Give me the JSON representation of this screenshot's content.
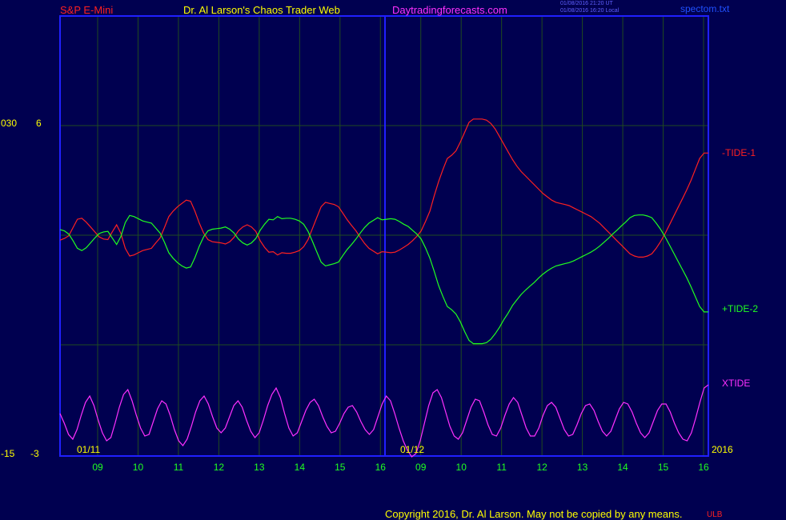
{
  "header": {
    "instrument": "S&P E-Mini",
    "author": "Dr. Al Larson's Chaos Trader Web",
    "site": "Daytradingforecasts.com",
    "stamp_line1": "01/08/2016 21:20 UT",
    "stamp_line2": "01/08/2016 16:20 Local",
    "file": "spectom.txt"
  },
  "footer": {
    "copyright": "Copyright 2016, Dr. Al Larson. May not be copied by any means.",
    "mark": "ULB"
  },
  "colors": {
    "background": "#000050",
    "frame": "#2020ff",
    "grid": "#1f4a1f",
    "tide1": "#ff2020",
    "tide2": "#20ff20",
    "xtide": "#ff30ff",
    "axis_text": "#ffff00",
    "tick_text": "#20ff20"
  },
  "chart_data": {
    "type": "line",
    "x_ticks": [
      "09",
      "10",
      "11",
      "12",
      "13",
      "14",
      "15",
      "16",
      "09",
      "10",
      "11",
      "12",
      "13",
      "14",
      "15",
      "16"
    ],
    "date_labels": [
      "01/11",
      "01/12"
    ],
    "year_label": "2016",
    "y_left_outer": {
      "top": "030",
      "bottom": "-15"
    },
    "y_left_inner": {
      "top": "6",
      "bottom": "-3"
    },
    "series": [
      {
        "name": "-TIDE-1",
        "color": "#ff2020",
        "values": [
          -0.45,
          -0.3,
          -0.05,
          0.7,
          1.45,
          1.55,
          1.2,
          0.75,
          0.3,
          -0.15,
          -0.35,
          -0.4,
          0.3,
          0.95,
          0.15,
          -1.2,
          -1.9,
          -1.8,
          -1.6,
          -1.4,
          -1.3,
          -1.2,
          -0.7,
          -0.25,
          0.7,
          1.7,
          2.2,
          2.6,
          2.9,
          3.2,
          3.1,
          2.2,
          1.1,
          0.2,
          -0.4,
          -0.6,
          -0.65,
          -0.7,
          -0.8,
          -0.6,
          -0.2,
          0.4,
          0.75,
          0.95,
          0.75,
          0.35,
          -0.5,
          -1.1,
          -1.55,
          -1.5,
          -1.8,
          -1.6,
          -1.65,
          -1.65,
          -1.55,
          -1.4,
          -1.05,
          -0.4,
          0.6,
          1.6,
          2.6,
          3.0,
          2.9,
          2.8,
          2.6,
          2.0,
          1.4,
          0.9,
          0.4,
          -0.2,
          -0.75,
          -1.2,
          -1.45,
          -1.7,
          -1.5,
          -1.55,
          -1.6,
          -1.55,
          -1.35,
          -1.1,
          -0.85,
          -0.5,
          -0.1,
          0.4,
          1.25,
          2.2,
          3.6,
          4.9,
          6.0,
          7.0,
          7.3,
          7.7,
          8.5,
          9.4,
          10.3,
          10.6,
          10.6,
          10.6,
          10.5,
          10.2,
          9.7,
          9.0,
          8.3,
          7.6,
          6.9,
          6.3,
          5.8,
          5.4,
          5.0,
          4.6,
          4.2,
          3.8,
          3.5,
          3.2,
          3.0,
          2.9,
          2.8,
          2.7,
          2.5,
          2.3,
          2.1,
          1.9,
          1.7,
          1.4,
          1.1,
          0.7,
          0.3,
          -0.1,
          -0.5,
          -0.9,
          -1.3,
          -1.7,
          -1.9,
          -2.0,
          -2.0,
          -1.9,
          -1.7,
          -1.2,
          -0.6,
          0.1,
          0.9,
          1.7,
          2.5,
          3.3,
          4.1,
          5.0,
          6.0,
          7.0,
          7.5,
          7.5
        ]
      },
      {
        "name": "+TIDE-2",
        "color": "#20ff20",
        "values": [
          0.5,
          0.4,
          0.1,
          -0.5,
          -1.2,
          -1.4,
          -1.15,
          -0.7,
          -0.25,
          0.15,
          0.3,
          0.35,
          -0.25,
          -0.85,
          -0.1,
          1.15,
          1.8,
          1.7,
          1.5,
          1.3,
          1.2,
          1.1,
          0.65,
          0.2,
          -0.65,
          -1.6,
          -2.1,
          -2.5,
          -2.8,
          -3.0,
          -2.9,
          -2.05,
          -1.0,
          -0.15,
          0.4,
          0.55,
          0.6,
          0.65,
          0.75,
          0.55,
          0.2,
          -0.35,
          -0.7,
          -0.9,
          -0.7,
          -0.3,
          0.45,
          1.0,
          1.45,
          1.4,
          1.7,
          1.5,
          1.55,
          1.55,
          1.45,
          1.3,
          1.0,
          0.35,
          -0.55,
          -1.5,
          -2.45,
          -2.8,
          -2.7,
          -2.6,
          -2.45,
          -1.85,
          -1.3,
          -0.85,
          -0.35,
          0.2,
          0.7,
          1.1,
          1.35,
          1.6,
          1.4,
          1.45,
          1.5,
          1.45,
          1.25,
          1.0,
          0.8,
          0.45,
          0.1,
          -0.35,
          -1.15,
          -2.1,
          -3.3,
          -4.6,
          -5.6,
          -6.5,
          -6.8,
          -7.2,
          -7.9,
          -8.8,
          -9.6,
          -9.9,
          -9.9,
          -9.9,
          -9.8,
          -9.5,
          -9.0,
          -8.4,
          -7.7,
          -7.1,
          -6.4,
          -5.9,
          -5.4,
          -5.0,
          -4.65,
          -4.3,
          -3.9,
          -3.55,
          -3.25,
          -3.0,
          -2.8,
          -2.7,
          -2.6,
          -2.5,
          -2.35,
          -2.15,
          -1.95,
          -1.75,
          -1.55,
          -1.3,
          -1.0,
          -0.65,
          -0.3,
          0.1,
          0.45,
          0.85,
          1.2,
          1.6,
          1.8,
          1.85,
          1.85,
          1.75,
          1.6,
          1.1,
          0.55,
          -0.1,
          -0.85,
          -1.6,
          -2.35,
          -3.1,
          -3.85,
          -4.7,
          -5.6,
          -6.5,
          -7.0,
          -7.0
        ]
      },
      {
        "name": "XTIDE",
        "color": "#ff30ff",
        "values": [
          0.4,
          -0.2,
          -0.9,
          -1.2,
          -0.6,
          0.3,
          1.1,
          1.5,
          0.9,
          0.0,
          -0.8,
          -1.3,
          -1.1,
          -0.2,
          0.8,
          1.6,
          1.9,
          1.2,
          0.3,
          -0.5,
          -1.0,
          -0.9,
          -0.1,
          0.7,
          1.2,
          1.0,
          0.3,
          -0.6,
          -1.3,
          -1.6,
          -1.2,
          -0.4,
          0.5,
          1.2,
          1.5,
          1.0,
          0.2,
          -0.5,
          -0.8,
          -0.5,
          0.2,
          0.9,
          1.2,
          0.8,
          0.0,
          -0.7,
          -1.1,
          -0.8,
          0.0,
          0.9,
          1.6,
          2.0,
          1.4,
          0.4,
          -0.5,
          -1.0,
          -0.8,
          -0.1,
          0.6,
          1.1,
          1.3,
          0.9,
          0.2,
          -0.4,
          -0.8,
          -0.7,
          -0.2,
          0.4,
          0.8,
          0.9,
          0.5,
          -0.1,
          -0.6,
          -0.9,
          -0.6,
          0.2,
          1.0,
          1.5,
          1.2,
          0.4,
          -0.5,
          -1.3,
          -1.9,
          -2.3,
          -2.1,
          -1.3,
          -0.2,
          0.9,
          1.7,
          1.9,
          1.4,
          0.5,
          -0.4,
          -1.0,
          -1.2,
          -0.8,
          0.0,
          0.8,
          1.3,
          1.2,
          0.5,
          -0.3,
          -0.9,
          -1.0,
          -0.5,
          0.3,
          1.0,
          1.4,
          1.1,
          0.3,
          -0.5,
          -1.0,
          -1.0,
          -0.5,
          0.3,
          0.9,
          1.1,
          0.8,
          0.1,
          -0.6,
          -1.0,
          -0.9,
          -0.3,
          0.4,
          0.9,
          1.0,
          0.6,
          -0.1,
          -0.7,
          -1.0,
          -0.7,
          0.0,
          0.7,
          1.1,
          1.0,
          0.5,
          -0.2,
          -0.8,
          -1.1,
          -0.8,
          -0.1,
          0.6,
          1.0,
          1.0,
          0.5,
          -0.2,
          -0.8,
          -1.2,
          -1.3,
          -0.8,
          0.1,
          1.1,
          2.0,
          2.2
        ]
      }
    ]
  }
}
